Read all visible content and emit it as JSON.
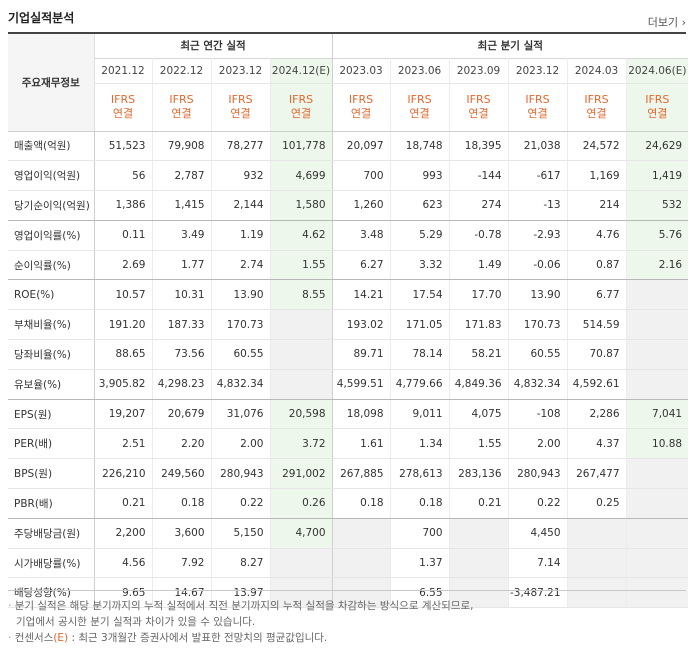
{
  "title": "기업실적분석",
  "more_label": "더보기",
  "header": {
    "row_label": "주요재무정보",
    "group_annual": "최근 연간 실적",
    "group_quarter": "최근 분기 실적",
    "periods": [
      "2021.12",
      "2022.12",
      "2023.12",
      "2024.12(E)",
      "2023.03",
      "2023.06",
      "2023.09",
      "2023.12",
      "2024.03",
      "2024.06(E)"
    ],
    "ifrs_line1": "IFRS",
    "ifrs_line2": "연결"
  },
  "rows": [
    {
      "label": "매출액(억원)",
      "values": [
        "51,523",
        "79,908",
        "78,277",
        "101,778",
        "20,097",
        "18,748",
        "18,395",
        "21,038",
        "24,572",
        "24,629"
      ]
    },
    {
      "label": "영업이익(억원)",
      "values": [
        "56",
        "2,787",
        "932",
        "4,699",
        "700",
        "993",
        "-144",
        "-617",
        "1,169",
        "1,419"
      ]
    },
    {
      "label": "당기순이익(억원)",
      "values": [
        "1,386",
        "1,415",
        "2,144",
        "1,580",
        "1,260",
        "623",
        "274",
        "-13",
        "214",
        "532"
      ]
    },
    {
      "label": "영업이익률(%)",
      "values": [
        "0.11",
        "3.49",
        "1.19",
        "4.62",
        "3.48",
        "5.29",
        "-0.78",
        "-2.93",
        "4.76",
        "5.76"
      ]
    },
    {
      "label": "순이익률(%)",
      "values": [
        "2.69",
        "1.77",
        "2.74",
        "1.55",
        "6.27",
        "3.32",
        "1.49",
        "-0.06",
        "0.87",
        "2.16"
      ]
    },
    {
      "label": "ROE(%)",
      "values": [
        "10.57",
        "10.31",
        "13.90",
        "8.55",
        "14.21",
        "17.54",
        "17.70",
        "13.90",
        "6.77",
        ""
      ]
    },
    {
      "label": "부채비율(%)",
      "values": [
        "191.20",
        "187.33",
        "170.73",
        "",
        "193.02",
        "171.05",
        "171.83",
        "170.73",
        "514.59",
        ""
      ]
    },
    {
      "label": "당좌비율(%)",
      "values": [
        "88.65",
        "73.56",
        "60.55",
        "",
        "89.71",
        "78.14",
        "58.21",
        "60.55",
        "70.87",
        ""
      ]
    },
    {
      "label": "유보율(%)",
      "values": [
        "3,905.82",
        "4,298.23",
        "4,832.34",
        "",
        "4,599.51",
        "4,779.66",
        "4,849.36",
        "4,832.34",
        "4,592.61",
        ""
      ]
    },
    {
      "label": "EPS(원)",
      "values": [
        "19,207",
        "20,679",
        "31,076",
        "20,598",
        "18,098",
        "9,011",
        "4,075",
        "-108",
        "2,286",
        "7,041"
      ]
    },
    {
      "label": "PER(배)",
      "values": [
        "2.51",
        "2.20",
        "2.00",
        "3.72",
        "1.61",
        "1.34",
        "1.55",
        "2.00",
        "4.37",
        "10.88"
      ]
    },
    {
      "label": "BPS(원)",
      "values": [
        "226,210",
        "249,560",
        "280,943",
        "291,002",
        "267,885",
        "278,613",
        "283,136",
        "280,943",
        "267,477",
        ""
      ]
    },
    {
      "label": "PBR(배)",
      "values": [
        "0.21",
        "0.18",
        "0.22",
        "0.26",
        "0.18",
        "0.18",
        "0.21",
        "0.22",
        "0.25",
        ""
      ]
    },
    {
      "label": "주당배당금(원)",
      "values": [
        "2,200",
        "3,600",
        "5,150",
        "4,700",
        "",
        "700",
        "",
        "4,450",
        "",
        ""
      ]
    },
    {
      "label": "시가배당률(%)",
      "values": [
        "4.56",
        "7.92",
        "8.27",
        "",
        "",
        "1.37",
        "",
        "7.14",
        "",
        ""
      ]
    },
    {
      "label": "배당성향(%)",
      "values": [
        "9.65",
        "14.67",
        "13.97",
        "",
        "",
        "6.55",
        "",
        "-3,487.21",
        "",
        ""
      ]
    }
  ],
  "notes": {
    "line1": "분기 실적은 해당 분기까지의 누적 실적에서 직전 분기까지의 누적 실적을 차감하는 방식으로 계산되므로,",
    "line2": "기업에서 공시한 분기 실적과 차이가 있을 수 있습니다.",
    "line3_prefix": "컨센서스",
    "line3_e": "(E)",
    "line3_rest": ": 최근 3개월간 증권사에서 발표한 전망치의 평균값입니다."
  },
  "colors": {
    "ifrs": "#e4672e",
    "negative": "#e02020",
    "estimate_bg": "#eef7ec",
    "blank_bg": "#f1f1f1"
  }
}
